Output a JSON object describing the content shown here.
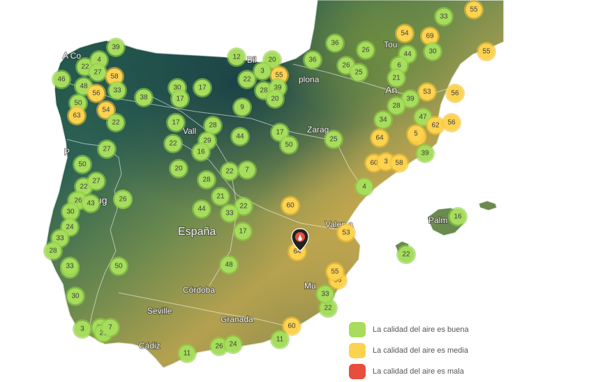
{
  "colors": {
    "good": "#a6dd5c",
    "good_ring": "#8fcf45",
    "medium": "#fdd24f",
    "medium_ring": "#f4c232",
    "bad": "#e94e3c",
    "sea": "#ffffff"
  },
  "cities": [
    {
      "id": "a-coruna",
      "label": "A Co"
    },
    {
      "id": "bilbao",
      "label": "Bil"
    },
    {
      "id": "pamplona",
      "label": "plona"
    },
    {
      "id": "toulouse",
      "label": "Tou"
    },
    {
      "id": "andorra",
      "label": "An"
    },
    {
      "id": "valladolid",
      "label": "Vall"
    },
    {
      "id": "zaragoza",
      "label": "Zarag"
    },
    {
      "id": "porto",
      "label": "P"
    },
    {
      "id": "portugal",
      "label": "ug"
    },
    {
      "id": "espana",
      "label": "España"
    },
    {
      "id": "valencia",
      "label": "Valen a"
    },
    {
      "id": "palma",
      "label": "Palm"
    },
    {
      "id": "cordoba",
      "label": "Córdoba"
    },
    {
      "id": "seville",
      "label": "Seville"
    },
    {
      "id": "murcia",
      "label": "Mu"
    },
    {
      "id": "granada",
      "label": "Granada"
    },
    {
      "id": "cadiz",
      "label": "Cádiz"
    }
  ],
  "markers": [
    {
      "id": "m1",
      "value": "39",
      "quality": "good"
    },
    {
      "id": "m2",
      "value": "46",
      "quality": "good"
    },
    {
      "id": "m3",
      "value": "22",
      "quality": "good"
    },
    {
      "id": "m4",
      "value": "4",
      "quality": "good"
    },
    {
      "id": "m5",
      "value": "27",
      "quality": "good"
    },
    {
      "id": "m6",
      "value": "58",
      "quality": "medium"
    },
    {
      "id": "m7",
      "value": "48",
      "quality": "good"
    },
    {
      "id": "m8",
      "value": "56",
      "quality": "medium"
    },
    {
      "id": "m9",
      "value": "33",
      "quality": "good"
    },
    {
      "id": "m10",
      "value": "50",
      "quality": "good"
    },
    {
      "id": "m11",
      "value": "54",
      "quality": "medium"
    },
    {
      "id": "m12",
      "value": "63",
      "quality": "medium"
    },
    {
      "id": "m13",
      "value": "22",
      "quality": "good"
    },
    {
      "id": "m14",
      "value": "38",
      "quality": "good"
    },
    {
      "id": "m15",
      "value": "30",
      "quality": "good"
    },
    {
      "id": "m16",
      "value": "17",
      "quality": "good"
    },
    {
      "id": "m17",
      "value": "17",
      "quality": "good"
    },
    {
      "id": "m18",
      "value": "12",
      "quality": "good"
    },
    {
      "id": "m19",
      "value": "22",
      "quality": "good"
    },
    {
      "id": "m20",
      "value": "20",
      "quality": "good"
    },
    {
      "id": "m21",
      "value": "55",
      "quality": "medium"
    },
    {
      "id": "m22",
      "value": "3",
      "quality": "good"
    },
    {
      "id": "m23",
      "value": "28",
      "quality": "good"
    },
    {
      "id": "m24",
      "value": "39",
      "quality": "good"
    },
    {
      "id": "m25",
      "value": "20",
      "quality": "good"
    },
    {
      "id": "m26",
      "value": "9",
      "quality": "good"
    },
    {
      "id": "m27",
      "value": "36",
      "quality": "good"
    },
    {
      "id": "m28",
      "value": "36",
      "quality": "good"
    },
    {
      "id": "m29",
      "value": "26",
      "quality": "good"
    },
    {
      "id": "m30",
      "value": "26",
      "quality": "good"
    },
    {
      "id": "m31",
      "value": "25",
      "quality": "good"
    },
    {
      "id": "m32",
      "value": "33",
      "quality": "good"
    },
    {
      "id": "m33",
      "value": "55",
      "quality": "medium"
    },
    {
      "id": "m34",
      "value": "54",
      "quality": "medium"
    },
    {
      "id": "m35",
      "value": "69",
      "quality": "medium"
    },
    {
      "id": "m36",
      "value": "44",
      "quality": "good"
    },
    {
      "id": "m37",
      "value": "30",
      "quality": "good"
    },
    {
      "id": "m38",
      "value": "55",
      "quality": "medium"
    },
    {
      "id": "m39",
      "value": "6",
      "quality": "good"
    },
    {
      "id": "m40",
      "value": "21",
      "quality": "good"
    },
    {
      "id": "m41",
      "value": "53",
      "quality": "medium"
    },
    {
      "id": "m42",
      "value": "56",
      "quality": "medium"
    },
    {
      "id": "m43",
      "value": "39",
      "quality": "good"
    },
    {
      "id": "m44",
      "value": "28",
      "quality": "good"
    },
    {
      "id": "m45",
      "value": "47",
      "quality": "good"
    },
    {
      "id": "m46",
      "value": "34",
      "quality": "good"
    },
    {
      "id": "m47",
      "value": "62",
      "quality": "medium"
    },
    {
      "id": "m48",
      "value": "56",
      "quality": "medium"
    },
    {
      "id": "m49",
      "value": "64",
      "quality": "medium"
    },
    {
      "id": "m50",
      "value": "56",
      "quality": "medium"
    },
    {
      "id": "m51",
      "value": "39",
      "quality": "good"
    },
    {
      "id": "m52",
      "value": "17",
      "quality": "good"
    },
    {
      "id": "m53",
      "value": "28",
      "quality": "good"
    },
    {
      "id": "m54",
      "value": "22",
      "quality": "good"
    },
    {
      "id": "m55",
      "value": "29",
      "quality": "good"
    },
    {
      "id": "m56",
      "value": "16",
      "quality": "good"
    },
    {
      "id": "m57",
      "value": "44",
      "quality": "good"
    },
    {
      "id": "m58",
      "value": "17",
      "quality": "good"
    },
    {
      "id": "m59",
      "value": "50",
      "quality": "good"
    },
    {
      "id": "m60",
      "value": "25",
      "quality": "good"
    },
    {
      "id": "m61",
      "value": "27",
      "quality": "good"
    },
    {
      "id": "m62",
      "value": "50",
      "quality": "good"
    },
    {
      "id": "m63",
      "value": "20",
      "quality": "good"
    },
    {
      "id": "m64",
      "value": "28",
      "quality": "good"
    },
    {
      "id": "m65",
      "value": "22",
      "quality": "good"
    },
    {
      "id": "m66",
      "value": "27",
      "quality": "good"
    },
    {
      "id": "m67",
      "value": "21",
      "quality": "good"
    },
    {
      "id": "m68",
      "value": "28",
      "quality": "good"
    },
    {
      "id": "m69",
      "value": "22",
      "quality": "good"
    },
    {
      "id": "m70",
      "value": "26",
      "quality": "good"
    },
    {
      "id": "m71",
      "value": "22",
      "quality": "good"
    },
    {
      "id": "m72",
      "value": "26",
      "quality": "good"
    },
    {
      "id": "m73",
      "value": "43",
      "quality": "good"
    },
    {
      "id": "m74",
      "value": "26",
      "quality": "good"
    },
    {
      "id": "m75",
      "value": "44",
      "quality": "good"
    },
    {
      "id": "m76",
      "value": "33",
      "quality": "good"
    },
    {
      "id": "m77",
      "value": "17",
      "quality": "good"
    },
    {
      "id": "m78",
      "value": "7",
      "quality": "good"
    },
    {
      "id": "m79",
      "value": "60",
      "quality": "medium"
    },
    {
      "id": "m80",
      "value": "60",
      "quality": "medium"
    },
    {
      "id": "m81",
      "value": "3",
      "quality": "medium"
    },
    {
      "id": "m82",
      "value": "58",
      "quality": "medium"
    },
    {
      "id": "m83",
      "value": "4",
      "quality": "good"
    },
    {
      "id": "m84",
      "value": "53",
      "quality": "medium"
    },
    {
      "id": "m85",
      "value": "30",
      "quality": "good"
    },
    {
      "id": "m86",
      "value": "24",
      "quality": "good"
    },
    {
      "id": "m87",
      "value": "33",
      "quality": "good"
    },
    {
      "id": "m88",
      "value": "28",
      "quality": "good"
    },
    {
      "id": "m89",
      "value": "24",
      "quality": "good"
    },
    {
      "id": "m90",
      "value": "50",
      "quality": "good"
    },
    {
      "id": "m91",
      "value": "48",
      "quality": "good"
    },
    {
      "id": "m92",
      "value": "64",
      "quality": "medium"
    },
    {
      "id": "m93",
      "value": "16",
      "quality": "good"
    },
    {
      "id": "m94",
      "value": "22",
      "quality": "good"
    },
    {
      "id": "m95",
      "value": "30",
      "quality": "good"
    },
    {
      "id": "m96",
      "value": "56",
      "quality": "medium"
    },
    {
      "id": "m97",
      "value": "22",
      "quality": "good"
    },
    {
      "id": "m98",
      "value": "3",
      "quality": "good"
    },
    {
      "id": "m99",
      "value": "20",
      "quality": "good"
    },
    {
      "id": "m100",
      "value": "21",
      "quality": "good"
    },
    {
      "id": "m101",
      "value": "7",
      "quality": "good"
    },
    {
      "id": "m102",
      "value": "60",
      "quality": "medium"
    },
    {
      "id": "m103",
      "value": "11",
      "quality": "good"
    },
    {
      "id": "m104",
      "value": "26",
      "quality": "good"
    },
    {
      "id": "m105",
      "value": "24",
      "quality": "good"
    },
    {
      "id": "m106",
      "value": "11",
      "quality": "good"
    },
    {
      "id": "m107",
      "value": "33",
      "quality": "good"
    },
    {
      "id": "m108",
      "value": "55",
      "quality": "medium"
    },
    {
      "id": "m109",
      "value": "5",
      "quality": "medium"
    },
    {
      "id": "m110",
      "value": "33",
      "quality": "good"
    }
  ],
  "selected_marker_icon": "fire-location-pin-icon",
  "legend": [
    {
      "id": "good",
      "label": "La calidad del aire es buena"
    },
    {
      "id": "medium",
      "label": "La calidad del aire es media"
    },
    {
      "id": "bad",
      "label": "La calidad del aire es mala"
    }
  ]
}
